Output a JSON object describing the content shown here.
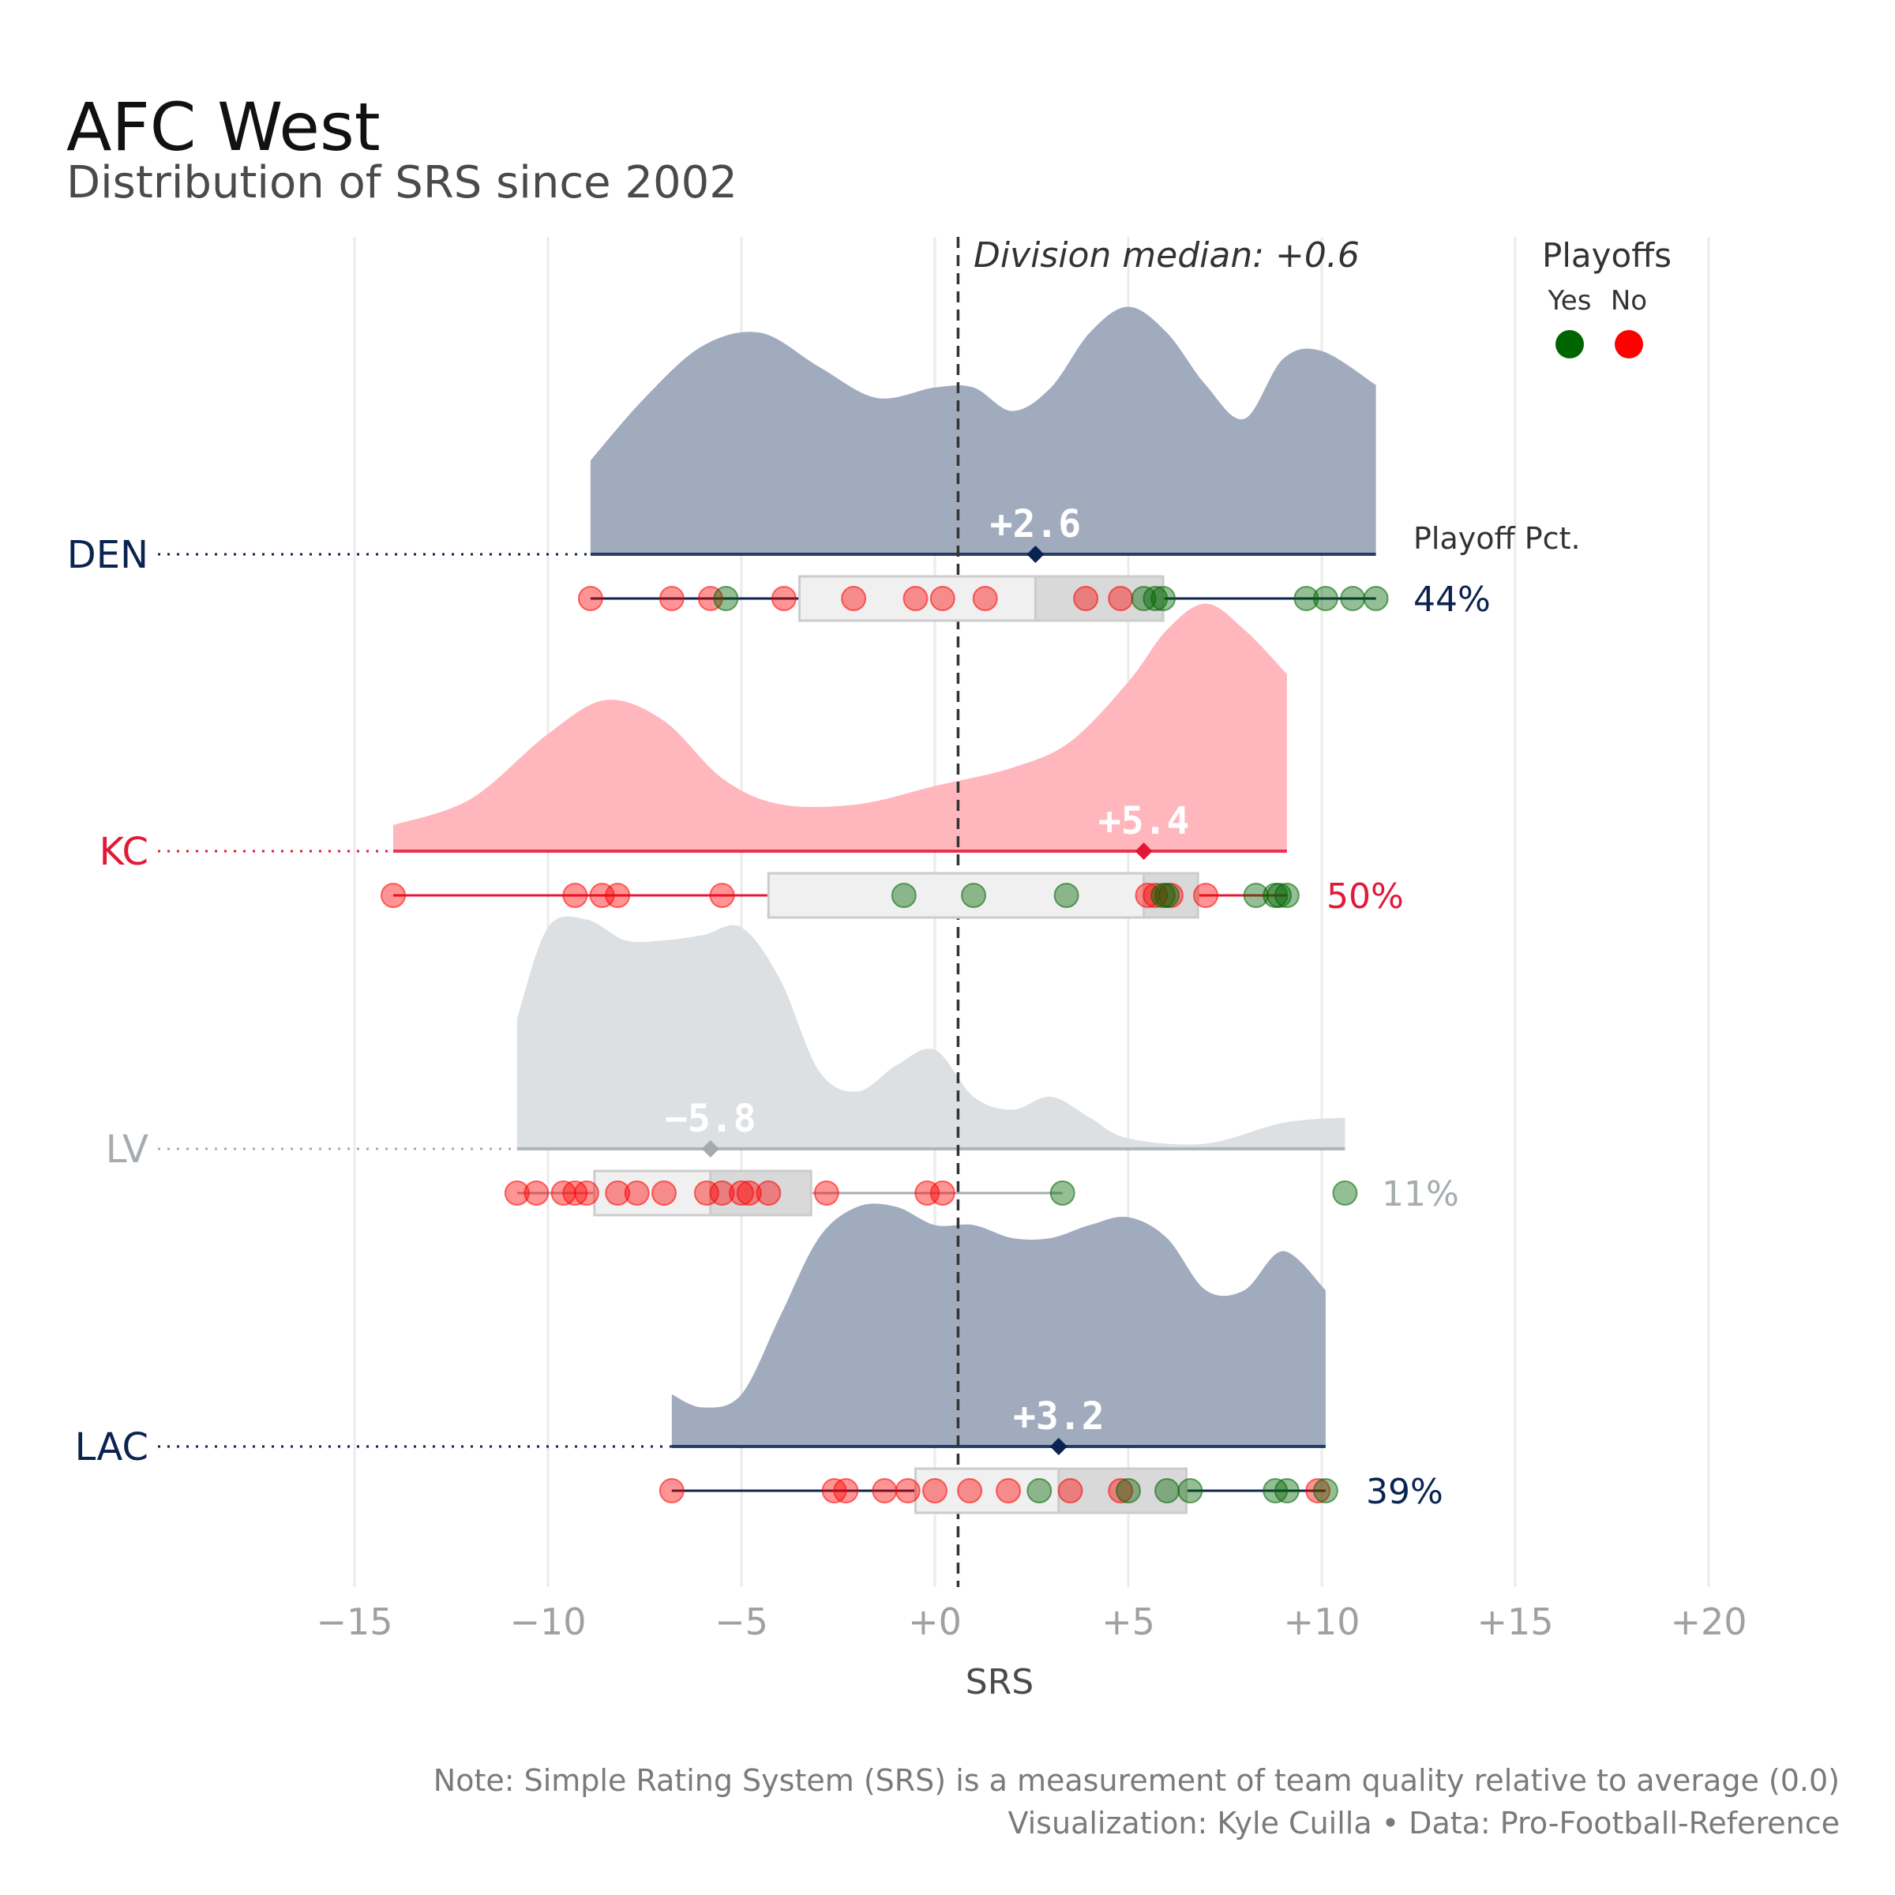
{
  "chart_data": {
    "type": "raincloud",
    "title": "AFC West",
    "subtitle": "Distribution of SRS since 2002",
    "xlabel": "SRS",
    "xlim": [
      -16,
      21
    ],
    "xticks": [
      -15,
      -10,
      -5,
      0,
      5,
      10,
      15,
      20
    ],
    "xtick_labels": [
      "−15",
      "−10",
      "−5",
      "+0",
      "+5",
      "+10",
      "+15",
      "+20"
    ],
    "division_median": 0.6,
    "division_median_label": "Division median: +0.6",
    "legend": {
      "title": "Playoffs",
      "entries": [
        {
          "label": "Yes",
          "color": "#006400"
        },
        {
          "label": "No",
          "color": "#ff0000"
        }
      ]
    },
    "playoff_pct_header": "Playoff Pct.",
    "teams": [
      {
        "name": "DEN",
        "color": "#0b2350",
        "density_color": "#a1abbe",
        "median": 2.6,
        "median_label": "+2.6",
        "box": [
          -3.5,
          2.6,
          5.9
        ],
        "whisker": [
          -8.9,
          11.4
        ],
        "playoff_pct": "44%",
        "density": [
          [
            -8.9,
            0.36
          ],
          [
            -7.5,
            0.6
          ],
          [
            -6,
            0.8
          ],
          [
            -4.5,
            0.85
          ],
          [
            -3,
            0.72
          ],
          [
            -1.5,
            0.6
          ],
          [
            0,
            0.64
          ],
          [
            1,
            0.64
          ],
          [
            2,
            0.55
          ],
          [
            3,
            0.64
          ],
          [
            4,
            0.85
          ],
          [
            5,
            0.95
          ],
          [
            6,
            0.85
          ],
          [
            7,
            0.65
          ],
          [
            8,
            0.52
          ],
          [
            9,
            0.75
          ],
          [
            10,
            0.78
          ],
          [
            11.4,
            0.65
          ]
        ],
        "points_no": [
          -8.9,
          -6.8,
          -5.8,
          -3.9,
          -2.1,
          -0.5,
          0.2,
          1.3,
          3.9,
          4.8
        ],
        "points_yes": [
          -5.4,
          5.4,
          5.7,
          5.9,
          9.6,
          10.1,
          10.8,
          11.4
        ]
      },
      {
        "name": "KC",
        "color": "#e31837",
        "density_color": "#ffb6bc",
        "median": 5.4,
        "median_label": "+5.4",
        "box": [
          -4.3,
          5.4,
          6.8
        ],
        "whisker": [
          -14.0,
          9.1
        ],
        "playoff_pct": "50%",
        "density": [
          [
            -14,
            0.1
          ],
          [
            -12,
            0.2
          ],
          [
            -10,
            0.45
          ],
          [
            -8.5,
            0.58
          ],
          [
            -7,
            0.5
          ],
          [
            -5.5,
            0.28
          ],
          [
            -4,
            0.18
          ],
          [
            -2,
            0.18
          ],
          [
            0,
            0.25
          ],
          [
            2,
            0.32
          ],
          [
            3.5,
            0.42
          ],
          [
            5,
            0.65
          ],
          [
            6,
            0.85
          ],
          [
            7,
            0.95
          ],
          [
            8,
            0.85
          ],
          [
            9.1,
            0.68
          ]
        ],
        "points_no": [
          -14.0,
          -9.3,
          -8.6,
          -8.2,
          -5.5,
          5.5,
          5.7,
          6.1,
          7.0
        ],
        "points_yes": [
          -0.8,
          1.0,
          3.4,
          5.9,
          6.0,
          8.3,
          8.8,
          8.9,
          9.1
        ]
      },
      {
        "name": "LV",
        "color": "#a5acaf",
        "density_color": "#dde0e2",
        "median": -5.8,
        "median_label": "−5.8",
        "box": [
          -8.8,
          -5.8,
          -3.2
        ],
        "whisker": [
          -10.8,
          3.3
        ],
        "playoff_pct": "11%",
        "density": [
          [
            -10.8,
            0.5
          ],
          [
            -10,
            0.85
          ],
          [
            -9,
            0.88
          ],
          [
            -8,
            0.8
          ],
          [
            -7,
            0.8
          ],
          [
            -6,
            0.82
          ],
          [
            -5,
            0.85
          ],
          [
            -4,
            0.65
          ],
          [
            -3,
            0.3
          ],
          [
            -2,
            0.22
          ],
          [
            -1,
            0.32
          ],
          [
            0,
            0.38
          ],
          [
            1,
            0.2
          ],
          [
            2,
            0.15
          ],
          [
            3,
            0.2
          ],
          [
            4,
            0.12
          ],
          [
            5,
            0.04
          ],
          [
            7,
            0.02
          ],
          [
            9,
            0.1
          ],
          [
            10.6,
            0.12
          ]
        ],
        "points_no": [
          -10.8,
          -10.3,
          -9.6,
          -9.3,
          -9.0,
          -8.2,
          -7.7,
          -7.0,
          -5.9,
          -5.5,
          -5.0,
          -4.8,
          -4.3,
          -2.8,
          -0.2,
          0.2
        ],
        "points_yes": [
          3.3,
          10.6
        ]
      },
      {
        "name": "LAC",
        "color": "#0b2350",
        "density_color": "#a1abbe",
        "median": 3.2,
        "median_label": "+3.2",
        "box": [
          -0.5,
          3.2,
          6.5
        ],
        "whisker": [
          -6.8,
          10.1
        ],
        "playoff_pct": "39%",
        "density": [
          [
            -6.8,
            0.2
          ],
          [
            -6,
            0.15
          ],
          [
            -5,
            0.2
          ],
          [
            -4,
            0.5
          ],
          [
            -3,
            0.8
          ],
          [
            -2,
            0.92
          ],
          [
            -1,
            0.92
          ],
          [
            0,
            0.85
          ],
          [
            1,
            0.85
          ],
          [
            2,
            0.8
          ],
          [
            3,
            0.8
          ],
          [
            4,
            0.85
          ],
          [
            5,
            0.88
          ],
          [
            6,
            0.8
          ],
          [
            7,
            0.6
          ],
          [
            8,
            0.6
          ],
          [
            9,
            0.75
          ],
          [
            10.1,
            0.6
          ]
        ],
        "points_no": [
          -6.8,
          -2.6,
          -2.3,
          -1.3,
          -0.7,
          0.0,
          0.9,
          1.9,
          3.5,
          4.8,
          9.9
        ],
        "points_yes": [
          2.7,
          5.0,
          6.0,
          6.6,
          8.8,
          9.1,
          10.1
        ]
      }
    ],
    "note_lines": [
      "Note: Simple Rating System (SRS) is a measurement of team quality relative to average (0.0)",
      "Visualization: Kyle Cuilla  •  Data: Pro-Football-Reference"
    ]
  }
}
